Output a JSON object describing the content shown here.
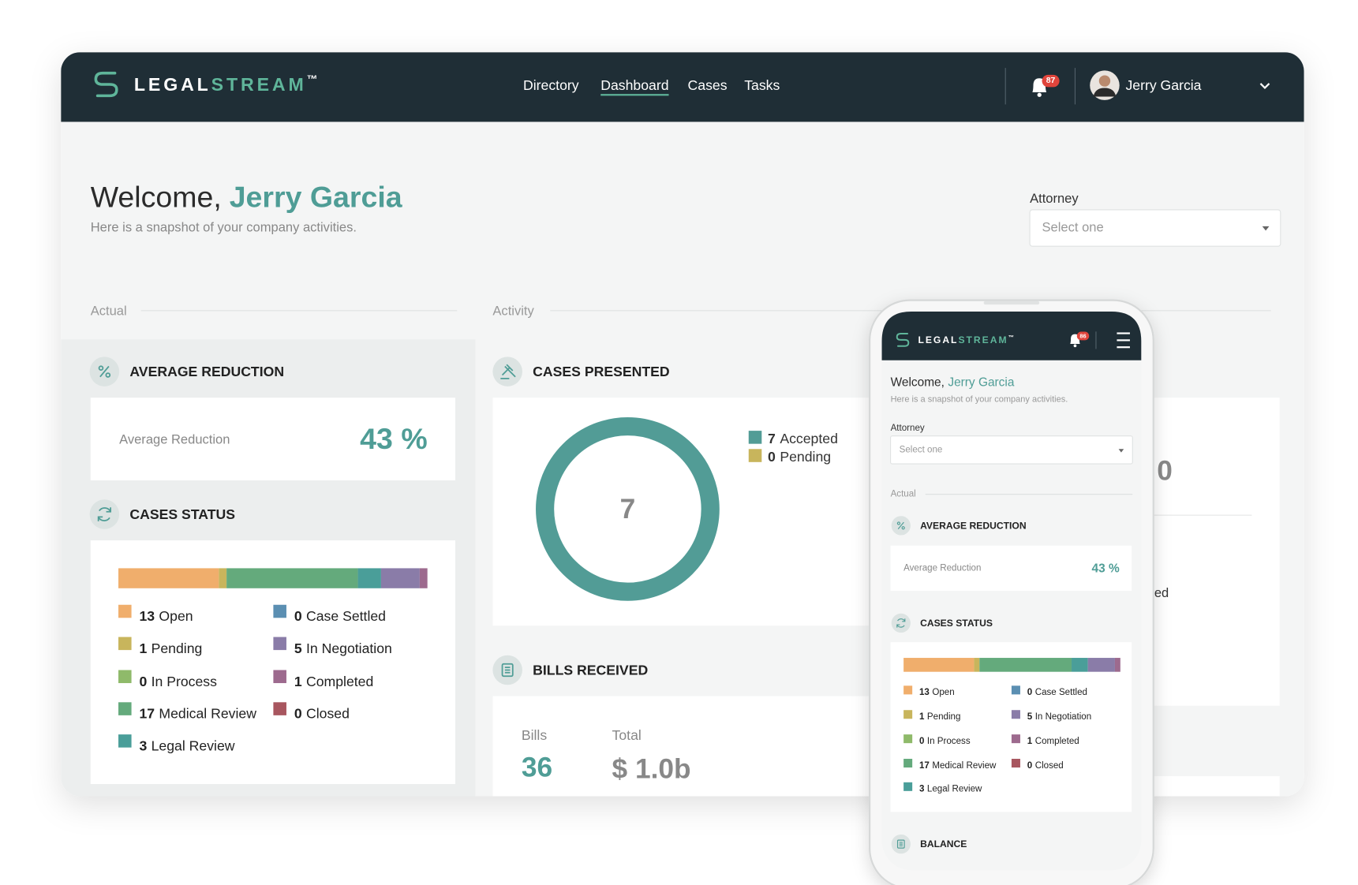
{
  "nav": {
    "brand_a": "LEGAL",
    "brand_b": "STREAM",
    "trademark": "™",
    "links": [
      "Directory",
      "Dashboard",
      "Cases",
      "Tasks"
    ],
    "notifications": 87,
    "user": "Jerry Garcia"
  },
  "header": {
    "greeting": "Welcome,",
    "name": "Jerry Garcia",
    "subtitle": "Here is a snapshot of your company activities.",
    "filter_label": "Attorney",
    "filter_placeholder": "Select one"
  },
  "sections": {
    "actual": "Actual",
    "activity": "Activity"
  },
  "average_reduction": {
    "title": "AVERAGE REDUCTION",
    "label": "Average Reduction",
    "value": 43,
    "unit": "%"
  },
  "cases_status": {
    "title": "CASES STATUS",
    "statuses": [
      {
        "count": 13,
        "label": "Open",
        "color": "#f0ae6c"
      },
      {
        "count": 1,
        "label": "Pending",
        "color": "#c8b55c"
      },
      {
        "count": 0,
        "label": "In Process",
        "color": "#8fba6a"
      },
      {
        "count": 17,
        "label": "Medical Review",
        "color": "#64aa7c"
      },
      {
        "count": 3,
        "label": "Legal Review",
        "color": "#4a9e99"
      },
      {
        "count": 0,
        "label": "Case Settled",
        "color": "#5b8fb2"
      },
      {
        "count": 5,
        "label": "In Negotiation",
        "color": "#8a7ca8"
      },
      {
        "count": 1,
        "label": "Completed",
        "color": "#9d6a8e"
      },
      {
        "count": 0,
        "label": "Closed",
        "color": "#a8565f"
      }
    ]
  },
  "cases_presented": {
    "title": "CASES PRESENTED",
    "total": 7,
    "items": [
      {
        "count": 7,
        "label": "Accepted",
        "color": "#529c96"
      },
      {
        "count": 0,
        "label": "Pending",
        "color": "#c8b55c"
      }
    ]
  },
  "bills_received": {
    "title": "BILLS RECEIVED",
    "bills_label": "Bills",
    "bills": 36,
    "total_label": "Total",
    "total": "$ 1.0b"
  },
  "hidden_panel": {
    "value_fragment": "0",
    "label_fragment": "ed"
  },
  "mobile": {
    "notifications": 86,
    "balance_title": "BALANCE"
  }
}
